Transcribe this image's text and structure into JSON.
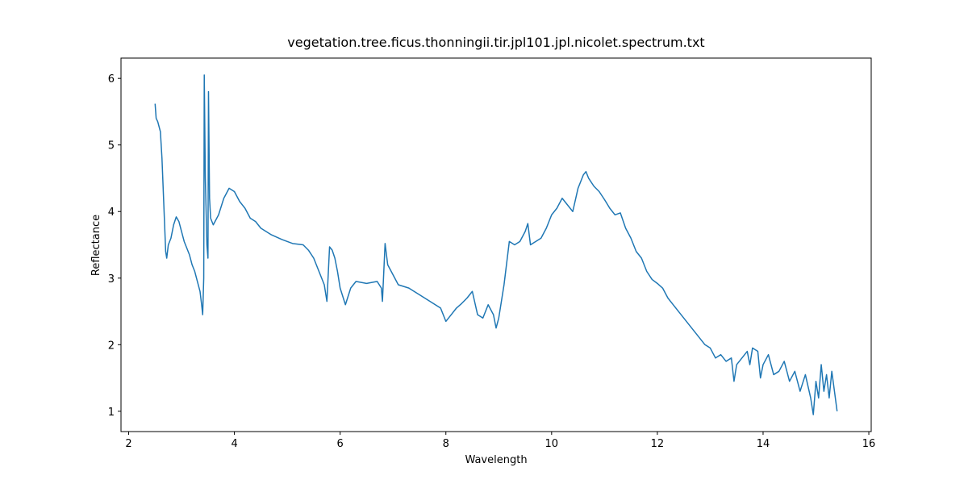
{
  "chart_data": {
    "type": "line",
    "title": "vegetation.tree.ficus.thonningii.tir.jpl101.jpl.nicolet.spectrum.txt",
    "x_label": "Wavelength",
    "y_label": "Reflectance",
    "xlim": [
      1.855,
      16.045
    ],
    "ylim": [
      0.695,
      6.305
    ],
    "xticks": [
      2,
      4,
      6,
      8,
      10,
      12,
      14,
      16
    ],
    "yticks": [
      1,
      2,
      3,
      4,
      5,
      6
    ],
    "series": [
      {
        "color": "#1f77b4",
        "x": [
          2.5,
          2.52,
          2.55,
          2.6,
          2.63,
          2.66,
          2.7,
          2.72,
          2.75,
          2.8,
          2.85,
          2.9,
          2.95,
          3.0,
          3.05,
          3.1,
          3.15,
          3.2,
          3.25,
          3.3,
          3.35,
          3.38,
          3.4,
          3.42,
          3.43,
          3.45,
          3.48,
          3.5,
          3.51,
          3.53,
          3.55,
          3.6,
          3.7,
          3.8,
          3.9,
          4.0,
          4.1,
          4.2,
          4.3,
          4.4,
          4.5,
          4.7,
          4.9,
          5.1,
          5.3,
          5.4,
          5.5,
          5.6,
          5.7,
          5.75,
          5.8,
          5.85,
          5.9,
          5.95,
          6.0,
          6.1,
          6.2,
          6.3,
          6.5,
          6.7,
          6.78,
          6.8,
          6.85,
          6.9,
          7.0,
          7.1,
          7.3,
          7.5,
          7.7,
          7.9,
          8.0,
          8.1,
          8.2,
          8.3,
          8.4,
          8.5,
          8.6,
          8.7,
          8.8,
          8.9,
          8.95,
          9.0,
          9.1,
          9.2,
          9.3,
          9.4,
          9.5,
          9.55,
          9.6,
          9.7,
          9.8,
          9.9,
          10.0,
          10.1,
          10.2,
          10.3,
          10.4,
          10.5,
          10.6,
          10.65,
          10.7,
          10.8,
          10.9,
          11.0,
          11.1,
          11.2,
          11.3,
          11.4,
          11.5,
          11.6,
          11.7,
          11.8,
          11.9,
          12.0,
          12.1,
          12.2,
          12.3,
          12.4,
          12.5,
          12.6,
          12.7,
          12.8,
          12.9,
          13.0,
          13.1,
          13.2,
          13.3,
          13.4,
          13.45,
          13.5,
          13.6,
          13.7,
          13.75,
          13.8,
          13.9,
          13.95,
          14.0,
          14.1,
          14.2,
          14.3,
          14.4,
          14.5,
          14.6,
          14.7,
          14.8,
          14.9,
          14.95,
          15.0,
          15.05,
          15.1,
          15.15,
          15.2,
          15.25,
          15.3,
          15.4
        ],
        "values": [
          5.62,
          5.4,
          5.35,
          5.2,
          4.8,
          4.2,
          3.4,
          3.3,
          3.5,
          3.6,
          3.8,
          3.92,
          3.85,
          3.7,
          3.55,
          3.45,
          3.35,
          3.2,
          3.1,
          2.95,
          2.8,
          2.6,
          2.45,
          3.0,
          6.05,
          4.5,
          3.5,
          3.3,
          5.8,
          4.2,
          3.9,
          3.8,
          3.95,
          4.2,
          4.35,
          4.3,
          4.15,
          4.05,
          3.9,
          3.85,
          3.75,
          3.65,
          3.58,
          3.52,
          3.5,
          3.42,
          3.3,
          3.1,
          2.9,
          2.65,
          3.47,
          3.42,
          3.3,
          3.1,
          2.85,
          2.6,
          2.85,
          2.95,
          2.92,
          2.95,
          2.85,
          2.65,
          3.52,
          3.2,
          3.05,
          2.9,
          2.85,
          2.75,
          2.65,
          2.55,
          2.35,
          2.45,
          2.55,
          2.62,
          2.7,
          2.8,
          2.45,
          2.4,
          2.6,
          2.45,
          2.25,
          2.4,
          2.9,
          3.55,
          3.5,
          3.55,
          3.7,
          3.82,
          3.5,
          3.55,
          3.6,
          3.75,
          3.95,
          4.05,
          4.2,
          4.1,
          4.0,
          4.35,
          4.55,
          4.6,
          4.5,
          4.38,
          4.3,
          4.18,
          4.05,
          3.95,
          3.98,
          3.75,
          3.6,
          3.4,
          3.3,
          3.1,
          2.98,
          2.92,
          2.85,
          2.7,
          2.6,
          2.5,
          2.4,
          2.3,
          2.2,
          2.1,
          2.0,
          1.95,
          1.8,
          1.85,
          1.75,
          1.8,
          1.45,
          1.7,
          1.8,
          1.9,
          1.7,
          1.95,
          1.9,
          1.5,
          1.7,
          1.85,
          1.55,
          1.6,
          1.75,
          1.45,
          1.6,
          1.3,
          1.55,
          1.2,
          0.95,
          1.45,
          1.2,
          1.7,
          1.3,
          1.55,
          1.2,
          1.6,
          1.0
        ]
      }
    ]
  }
}
